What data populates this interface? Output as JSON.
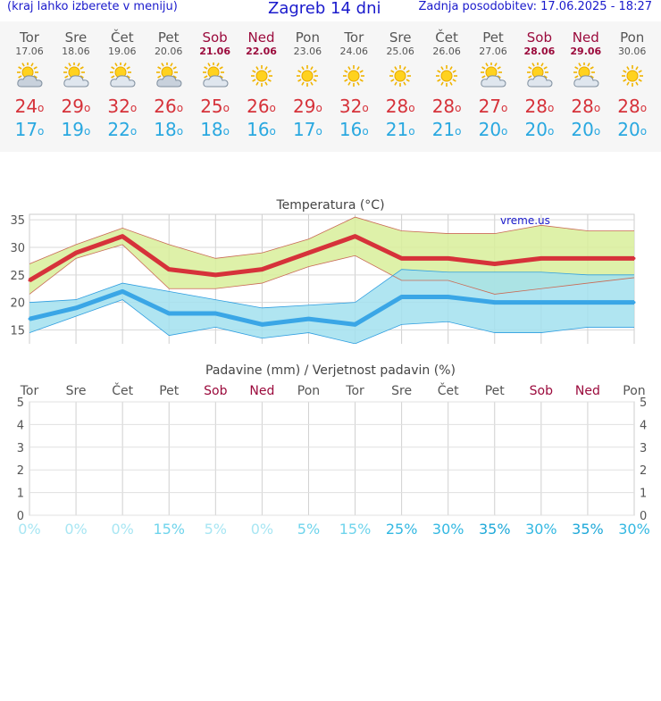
{
  "header": {
    "hint": "(kraj lahko izberete v meniju)",
    "title": "Zagreb 14 dni",
    "updated": "Zadnja posodobitev: 17.06.2025 - 18:27"
  },
  "days": [
    {
      "name": "Tor",
      "date": "17.06",
      "weekend": false,
      "icon": "partly-cloudy-icon",
      "max": "24",
      "min": "17"
    },
    {
      "name": "Sre",
      "date": "18.06",
      "weekend": false,
      "icon": "sun-cloud-icon",
      "max": "29",
      "min": "19"
    },
    {
      "name": "Čet",
      "date": "19.06",
      "weekend": false,
      "icon": "sun-cloud-icon",
      "max": "32",
      "min": "22"
    },
    {
      "name": "Pet",
      "date": "20.06",
      "weekend": false,
      "icon": "partly-cloudy-icon",
      "max": "26",
      "min": "18"
    },
    {
      "name": "Sob",
      "date": "21.06",
      "weekend": true,
      "icon": "sun-cloud-icon",
      "max": "25",
      "min": "18"
    },
    {
      "name": "Ned",
      "date": "22.06",
      "weekend": true,
      "icon": "sun-icon",
      "max": "26",
      "min": "16"
    },
    {
      "name": "Pon",
      "date": "23.06",
      "weekend": false,
      "icon": "sun-icon",
      "max": "29",
      "min": "17"
    },
    {
      "name": "Tor",
      "date": "24.06",
      "weekend": false,
      "icon": "sun-icon",
      "max": "32",
      "min": "16"
    },
    {
      "name": "Sre",
      "date": "25.06",
      "weekend": false,
      "icon": "sun-icon",
      "max": "28",
      "min": "21"
    },
    {
      "name": "Čet",
      "date": "26.06",
      "weekend": false,
      "icon": "sun-icon",
      "max": "28",
      "min": "21"
    },
    {
      "name": "Pet",
      "date": "27.06",
      "weekend": false,
      "icon": "sun-cloud-icon",
      "max": "27",
      "min": "20"
    },
    {
      "name": "Sob",
      "date": "28.06",
      "weekend": true,
      "icon": "sun-cloud-icon",
      "max": "28",
      "min": "20"
    },
    {
      "name": "Ned",
      "date": "29.06",
      "weekend": true,
      "icon": "sun-cloud-icon",
      "max": "28",
      "min": "20"
    },
    {
      "name": "Pon",
      "date": "30.06",
      "weekend": false,
      "icon": "sun-icon",
      "max": "28",
      "min": "20"
    }
  ],
  "degree_symbol": "o",
  "chart_data": [
    {
      "type": "line",
      "title": "Temperatura (°C)",
      "watermark": "vreme.us",
      "categories": [
        "17.06",
        "18.06",
        "19.06",
        "20.06",
        "21.06",
        "22.06",
        "23.06",
        "24.06",
        "25.06",
        "26.06",
        "27.06",
        "28.06",
        "29.06",
        "30.06"
      ],
      "ylim": [
        12,
        36
      ],
      "yticks": [
        15,
        20,
        25,
        30,
        35
      ],
      "grid": true,
      "series": [
        {
          "values": [
            24,
            29,
            32,
            26,
            25,
            26,
            29,
            32,
            28,
            28,
            27,
            28,
            28,
            28
          ],
          "color": "#d6323a"
        },
        {
          "values": [
            17,
            19,
            22,
            18,
            18,
            16,
            17,
            16,
            21,
            21,
            20,
            20,
            20,
            20
          ],
          "color": "#3aa6e6"
        }
      ],
      "max_band": {
        "low": [
          21.5,
          28,
          30.5,
          22.5,
          22.5,
          23.5,
          26.5,
          28.5,
          24,
          24,
          21.5,
          22.5,
          23.5,
          24.5
        ],
        "high": [
          27,
          30.5,
          33.5,
          30.5,
          28,
          29,
          31.5,
          35.5,
          33,
          32.5,
          32.5,
          34,
          33,
          33
        ],
        "color": "#d8ef9a"
      },
      "min_band": {
        "low": [
          14.5,
          17.5,
          20.5,
          14,
          15.5,
          13.5,
          14.5,
          12.5,
          16,
          16.5,
          14.5,
          14.5,
          15.5,
          15.5
        ],
        "high": [
          20,
          20.5,
          23.5,
          22,
          20.5,
          19,
          19.5,
          20,
          26,
          25.5,
          25.5,
          25.5,
          25,
          25
        ],
        "color": "#a2e1ee"
      }
    },
    {
      "type": "bar",
      "title": "Padavine (mm) / Verjetnost padavin (%)",
      "categories": [
        "Tor",
        "Sre",
        "Čet",
        "Pet",
        "Sob",
        "Ned",
        "Pon",
        "Tor",
        "Sre",
        "Čet",
        "Pet",
        "Sob",
        "Ned",
        "Pon"
      ],
      "weekend": [
        false,
        false,
        false,
        false,
        true,
        true,
        false,
        false,
        false,
        false,
        false,
        true,
        true,
        false
      ],
      "ylim": [
        0,
        5
      ],
      "yticks": [
        "0",
        "1",
        "2",
        "3",
        "4",
        "5"
      ],
      "values": [
        0,
        0,
        0,
        0,
        0,
        0,
        0,
        0,
        0,
        0,
        0,
        0,
        0,
        0
      ],
      "probability": [
        "0%",
        "0%",
        "0%",
        "15%",
        "5%",
        "0%",
        "5%",
        "15%",
        "25%",
        "30%",
        "35%",
        "30%",
        "35%",
        "30%"
      ],
      "probability_colors": [
        "#a8e6f3",
        "#a8e6f3",
        "#a8e6f3",
        "#6fd4ec",
        "#a8e6f3",
        "#a8e6f3",
        "#6fd4ec",
        "#6fd4ec",
        "#33b8e2",
        "#33b8e2",
        "#1fa9d9",
        "#33b8e2",
        "#1fa9d9",
        "#33b8e2"
      ]
    }
  ]
}
